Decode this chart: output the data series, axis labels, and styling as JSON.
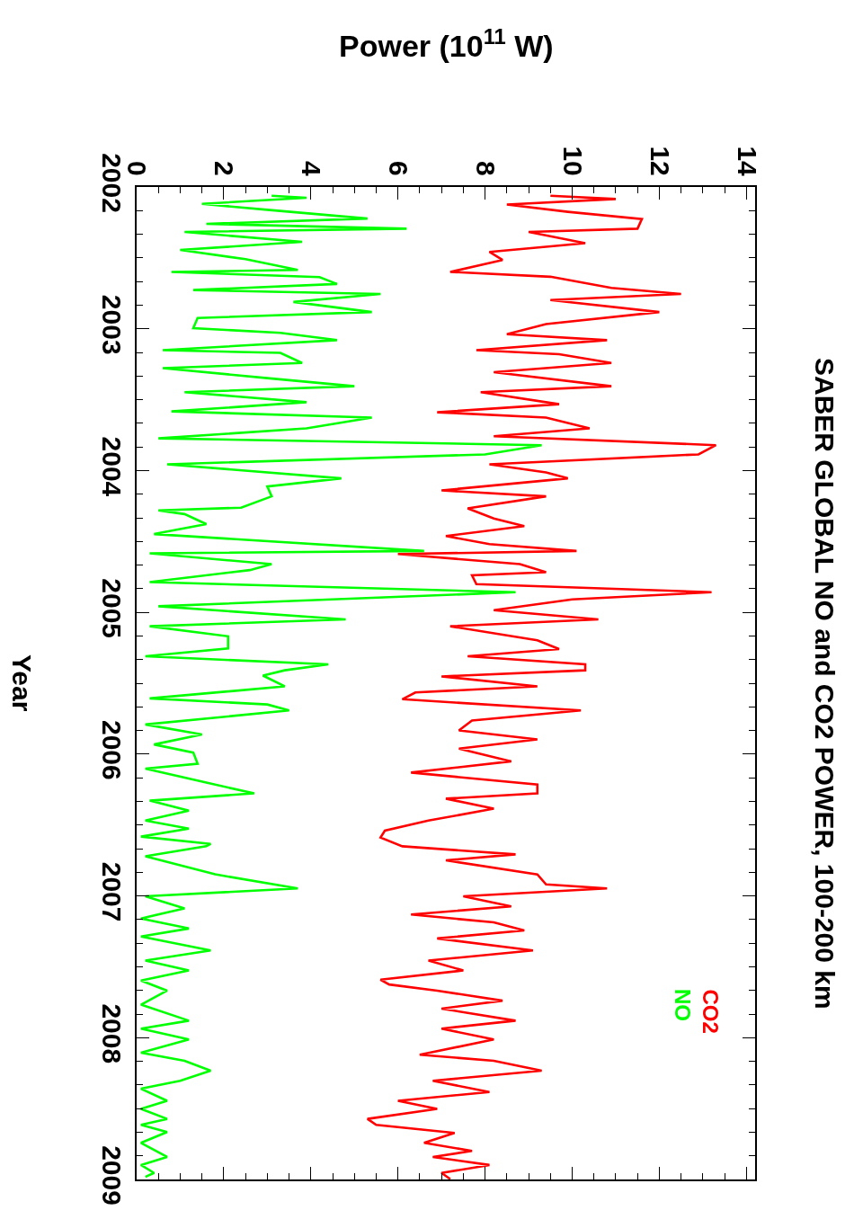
{
  "chart_data": {
    "type": "line",
    "title": "SABER GLOBAL NO and CO2 POWER, 100-200 km",
    "xlabel": "Power (10$^{11}$ W)",
    "ylabel": "Year",
    "ylim": [
      2009,
      2002
    ],
    "yticks": [
      2002,
      2003,
      2004,
      2005,
      2006,
      2007,
      2008,
      2009
    ],
    "xlim": [
      0,
      14.2
    ],
    "xticks": [
      0,
      2,
      4,
      6,
      8,
      10,
      12,
      14
    ],
    "legend": false,
    "marker": "none",
    "line_style": "solid",
    "series": [
      {
        "name": "CO2",
        "color": "#ff0000",
        "values": [
          2002.062,
          2002.085,
          2002.124,
          2002.175,
          2002.226,
          2002.294,
          2002.317,
          2002.396,
          2002.458,
          2002.515,
          2002.599,
          2002.633,
          2002.712,
          2002.755,
          2002.797,
          2002.882,
          2002.967,
          2003.038,
          2003.08,
          2003.151,
          2003.179,
          2003.241,
          2003.306,
          2003.405,
          2003.447,
          2003.532,
          2003.589,
          2003.626,
          2003.702,
          2003.758,
          2003.821,
          2003.886,
          2003.956,
          2004.013,
          2004.055,
          2004.14,
          2004.182,
          2004.267,
          2004.338,
          2004.392,
          2004.462,
          2004.519,
          2004.567,
          2004.589,
          2004.66,
          2004.717,
          2004.739,
          2004.801,
          2004.858,
          2004.909,
          2004.985,
          2005.05,
          2005.098,
          2005.197,
          2005.259,
          2005.31,
          2005.367,
          2005.409,
          2005.452,
          2005.522,
          2005.565,
          2005.613,
          2005.692,
          2005.763,
          2005.833,
          2005.896,
          2005.961,
          2006.051,
          2006.13,
          2006.215,
          2006.277,
          2006.314,
          2006.385,
          2006.469,
          2006.54,
          2006.588,
          2006.65,
          2006.707,
          2006.749,
          2006.848,
          2006.919,
          2006.947,
          2007.003,
          2007.074,
          2007.131,
          2007.187,
          2007.244,
          2007.3,
          2007.385,
          2007.456,
          2007.526,
          2007.591,
          2007.625,
          2007.668,
          2007.739,
          2007.795,
          2007.88,
          2007.936,
          2008.013,
          2008.12,
          2008.163,
          2008.233,
          2008.304,
          2008.383,
          2008.445,
          2008.502,
          2008.573,
          2008.615,
          2008.672,
          2008.742,
          2008.799,
          2008.841,
          2008.898,
          2008.954,
          2008.997
        ],
        "x": [
          9.5,
          11.0,
          8.5,
          9.9,
          11.6,
          11.5,
          9.0,
          10.3,
          8.1,
          8.4,
          7.2,
          9.5,
          10.9,
          12.5,
          9.5,
          12.0,
          9.4,
          8.5,
          10.8,
          7.8,
          9.7,
          10.9,
          8.2,
          10.9,
          7.9,
          9.7,
          6.9,
          9.4,
          10.4,
          8.2,
          13.3,
          12.9,
          8.1,
          9.4,
          9.9,
          7.0,
          9.4,
          7.6,
          8.2,
          8.9,
          7.1,
          8.1,
          10.1,
          6.0,
          8.8,
          9.4,
          7.7,
          7.8,
          13.2,
          10.0,
          8.2,
          10.6,
          7.2,
          9.2,
          9.7,
          7.6,
          10.3,
          10.3,
          7.0,
          9.2,
          6.4,
          6.1,
          10.2,
          7.7,
          7.4,
          9.2,
          7.4,
          8.6,
          6.3,
          9.2,
          9.2,
          7.1,
          8.2,
          6.7,
          5.7,
          5.6,
          6.1,
          8.7,
          7.1,
          9.2,
          9.4,
          10.8,
          7.5,
          8.6,
          6.3,
          8.2,
          8.9,
          6.9,
          9.1,
          6.7,
          7.5,
          5.6,
          5.8,
          6.9,
          8.4,
          7.0,
          8.7,
          7.0,
          8.2,
          6.5,
          8.2,
          9.3,
          6.8,
          8.1,
          6.0,
          6.9,
          5.3,
          5.5,
          7.3,
          6.6,
          7.7,
          6.8,
          8.1,
          7.0,
          7.2
        ]
      },
      {
        "name": "NO",
        "color": "#00ff00",
        "values": [
          2002.062,
          2002.076,
          2002.119,
          2002.161,
          2002.223,
          2002.26,
          2002.294,
          2002.317,
          2002.387,
          2002.444,
          2002.509,
          2002.585,
          2002.599,
          2002.636,
          2002.684,
          2002.727,
          2002.755,
          2002.811,
          2002.882,
          2002.924,
          2002.995,
          2003.029,
          2003.08,
          2003.151,
          2003.17,
          2003.241,
          2003.278,
          2003.348,
          2003.405,
          2003.447,
          2003.518,
          2003.583,
          2003.626,
          2003.702,
          2003.773,
          2003.821,
          2003.886,
          2003.956,
          2004.055,
          2004.112,
          2004.182,
          2004.262,
          2004.281,
          2004.307,
          2004.378,
          2004.448,
          2004.567,
          2004.584,
          2004.66,
          2004.702,
          2004.787,
          2004.858,
          2004.957,
          2005.05,
          2005.098,
          2005.169,
          2005.254,
          2005.31,
          2005.367,
          2005.409,
          2005.446,
          2005.522,
          2005.607,
          2005.65,
          2005.692,
          2005.791,
          2005.862,
          2005.932,
          2005.989,
          2006.068,
          2006.102,
          2006.201,
          2006.277,
          2006.328,
          2006.399,
          2006.469,
          2006.526,
          2006.582,
          2006.633,
          2006.65,
          2006.721,
          2006.848,
          2006.947,
          2007.003,
          2007.088,
          2007.159,
          2007.23,
          2007.286,
          2007.385,
          2007.456,
          2007.526,
          2007.597,
          2007.668,
          2007.767,
          2007.88,
          2007.936,
          2008.013,
          2008.106,
          2008.163,
          2008.233,
          2008.304,
          2008.36,
          2008.445,
          2008.502,
          2008.573,
          2008.615,
          2008.666,
          2008.742,
          2008.841,
          2008.898,
          2008.954,
          2008.982
        ],
        "x": [
          3.1,
          3.9,
          1.5,
          3.0,
          5.3,
          1.6,
          6.2,
          1.1,
          3.8,
          1.0,
          2.5,
          3.7,
          0.8,
          4.2,
          4.6,
          1.3,
          5.6,
          3.6,
          5.4,
          1.4,
          1.3,
          3.3,
          4.6,
          0.6,
          3.3,
          3.8,
          0.6,
          3.0,
          5.0,
          1.1,
          3.9,
          0.8,
          5.4,
          3.9,
          0.5,
          9.3,
          8.0,
          0.7,
          4.7,
          3.0,
          3.1,
          2.4,
          0.5,
          1.1,
          1.6,
          0.4,
          6.6,
          0.3,
          3.1,
          2.6,
          0.3,
          8.7,
          0.5,
          4.8,
          0.3,
          2.1,
          2.1,
          0.2,
          4.4,
          3.4,
          2.9,
          3.4,
          0.3,
          3.0,
          3.5,
          0.2,
          1.5,
          0.4,
          1.3,
          1.4,
          0.2,
          1.6,
          2.7,
          0.3,
          1.2,
          0.2,
          1.2,
          0.1,
          1.7,
          1.6,
          0.2,
          1.8,
          3.7,
          0.2,
          1.1,
          0.1,
          1.2,
          0.1,
          1.7,
          0.2,
          1.2,
          0.1,
          0.7,
          0.1,
          1.2,
          0.1,
          1.2,
          0.1,
          1.1,
          1.7,
          1.0,
          0.1,
          0.7,
          0.1,
          0.7,
          0.1,
          0.7,
          0.1,
          0.7,
          0.1,
          0.4,
          0.2
        ]
      }
    ]
  }
}
